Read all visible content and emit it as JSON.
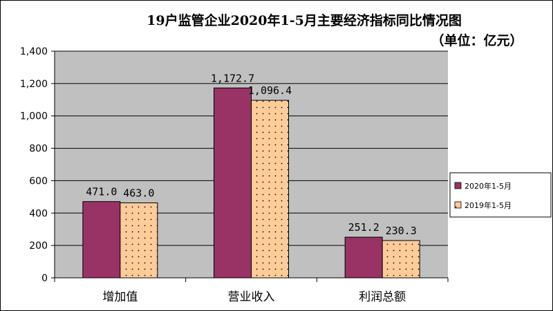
{
  "colors": {
    "plot_bg": "#c0c0c0",
    "series_2020": "#993366",
    "series_2019": "#ffcc99",
    "dot": "#000000"
  },
  "chart_data": {
    "type": "bar",
    "title": "19户监管企业2020年1-5月主要经济指标同比情况图",
    "subtitle": "（单位：亿元）",
    "xlabel": "",
    "ylabel": "",
    "ylim": [
      0,
      1400
    ],
    "yticks": [
      0,
      200,
      400,
      600,
      800,
      1000,
      1200,
      1400
    ],
    "ytick_labels": [
      "0",
      "200",
      "400",
      "600",
      "800",
      "1,000",
      "1,200",
      "1,400"
    ],
    "categories": [
      "增加值",
      "营业收入",
      "利润总额"
    ],
    "series": [
      {
        "name": "2020年1-5月",
        "values": [
          471.0,
          1172.7,
          251.2
        ],
        "labels": [
          "471.0",
          "1,172.7",
          "251.2"
        ]
      },
      {
        "name": "2019年1-5月",
        "values": [
          463.0,
          1096.4,
          230.3
        ],
        "labels": [
          "463.0",
          "1,096.4",
          "230.3"
        ]
      }
    ],
    "grid": true,
    "legend_position": "right"
  }
}
